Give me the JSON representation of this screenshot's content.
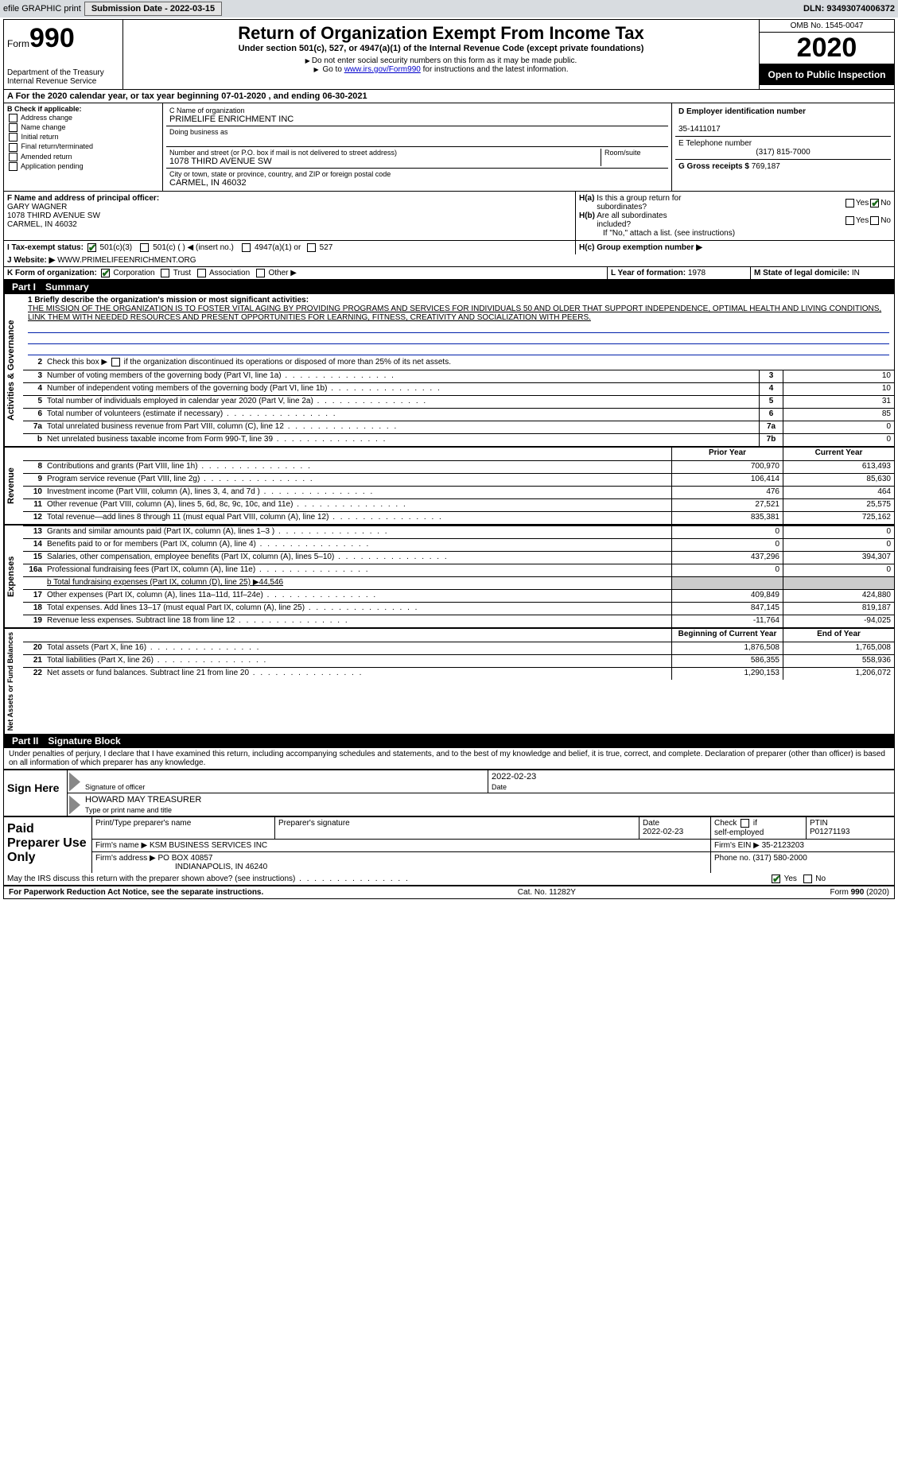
{
  "colors": {
    "header_bg": "#d8dce0",
    "black": "#000000",
    "link": "#0000cc",
    "check_green": "#1a6b1a",
    "underline_blue": "#0020aa",
    "shade": "#cccccc"
  },
  "topbar": {
    "efile": "efile GRAPHIC print",
    "submission_label": "Submission Date - 2022-03-15",
    "dln_label": "DLN: 93493074006372"
  },
  "header": {
    "form_label": "Form",
    "form_number": "990",
    "dept": "Department of the Treasury",
    "irs": "Internal Revenue Service",
    "title": "Return of Organization Exempt From Income Tax",
    "subtitle": "Under section 501(c), 527, or 4947(a)(1) of the Internal Revenue Code (except private foundations)",
    "warn1": "Do not enter social security numbers on this form as it may be made public.",
    "warn2_pre": "Go to ",
    "warn2_link": "www.irs.gov/Form990",
    "warn2_post": " for instructions and the latest information.",
    "omb": "OMB No. 1545-0047",
    "year": "2020",
    "inspect": "Open to Public Inspection"
  },
  "period": {
    "a_label": "A  For the 2020 calendar year, or tax year beginning ",
    "begin": "07-01-2020",
    "mid": " , and ending ",
    "end": "06-30-2021"
  },
  "section_b": {
    "label": "B Check if applicable:",
    "items": [
      "Address change",
      "Name change",
      "Initial return",
      "Final return/terminated",
      "Amended return",
      "Application pending"
    ]
  },
  "section_c": {
    "name_label": "C Name of organization",
    "name": "PRIMELIFE ENRICHMENT INC",
    "dba_label": "Doing business as",
    "addr_label": "Number and street (or P.O. box if mail is not delivered to street address)",
    "room_label": "Room/suite",
    "addr": "1078 THIRD AVENUE SW",
    "city_label": "City or town, state or province, country, and ZIP or foreign postal code",
    "city": "CARMEL, IN  46032"
  },
  "section_d": {
    "ein_label": "D Employer identification number",
    "ein": "35-1411017",
    "phone_label": "E Telephone number",
    "phone": "(317) 815-7000",
    "gross_label": "G Gross receipts $",
    "gross": "769,187"
  },
  "section_f": {
    "label": "F  Name and address of principal officer:",
    "name": "GARY WAGNER",
    "addr1": "1078 THIRD AVENUE SW",
    "addr2": "CARMEL, IN  46032"
  },
  "section_h": {
    "ha_label": "H(a)  Is this a group return for subordinates?",
    "hb_label": "H(b)  Are all subordinates included?",
    "hb_note": "If \"No,\" attach a list. (see instructions)",
    "hc_label": "H(c)  Group exemption number ▶",
    "yes": "Yes",
    "no": "No"
  },
  "section_i": {
    "label": "I  Tax-exempt status:",
    "opt1": "501(c)(3)",
    "opt2": "501(c) (   ) ◀ (insert no.)",
    "opt3": "4947(a)(1) or",
    "opt4": "527"
  },
  "section_j": {
    "label": "J  Website: ▶",
    "value": "WWW.PRIMELIFEENRICHMENT.ORG"
  },
  "section_k": {
    "label": "K Form of organization:",
    "opts": [
      "Corporation",
      "Trust",
      "Association",
      "Other ▶"
    ]
  },
  "section_l": {
    "label": "L Year of formation: ",
    "value": "1978"
  },
  "section_m": {
    "label": "M State of legal domicile: ",
    "value": "IN"
  },
  "part1": {
    "num": "Part I",
    "title": "Summary",
    "line1_label": "1  Briefly describe the organization's mission or most significant activities:",
    "mission": "THE MISSION OF THE ORGANIZATION IS TO FOSTER VITAL AGING BY PROVIDING PROGRAMS AND SERVICES FOR INDIVIDUALS 50 AND OLDER THAT SUPPORT INDEPENDENCE, OPTIMAL HEALTH AND LIVING CONDITIONS, LINK THEM WITH NEEDED RESOURCES AND PRESENT OPPORTUNITIES FOR LEARNING, FITNESS, CREATIVITY AND SOCIALIZATION WITH PEERS.",
    "line2": "Check this box ▶      if the organization discontinued its operations or disposed of more than 25% of its net assets.",
    "vert_labels": {
      "gov": "Activities & Governance",
      "rev": "Revenue",
      "exp": "Expenses",
      "net": "Net Assets or Fund Balances"
    },
    "prior_hdr": "Prior Year",
    "current_hdr": "Current Year",
    "begin_hdr": "Beginning of Current Year",
    "end_hdr": "End of Year",
    "gov_lines": [
      {
        "n": "3",
        "t": "Number of voting members of the governing body (Part VI, line 1a)",
        "box": "3",
        "v": "10"
      },
      {
        "n": "4",
        "t": "Number of independent voting members of the governing body (Part VI, line 1b)",
        "box": "4",
        "v": "10"
      },
      {
        "n": "5",
        "t": "Total number of individuals employed in calendar year 2020 (Part V, line 2a)",
        "box": "5",
        "v": "31"
      },
      {
        "n": "6",
        "t": "Total number of volunteers (estimate if necessary)",
        "box": "6",
        "v": "85"
      },
      {
        "n": "7a",
        "t": "Total unrelated business revenue from Part VIII, column (C), line 12",
        "box": "7a",
        "v": "0"
      },
      {
        "n": "b",
        "t": "Net unrelated business taxable income from Form 990-T, line 39",
        "box": "7b",
        "v": "0"
      }
    ],
    "rev_lines": [
      {
        "n": "8",
        "t": "Contributions and grants (Part VIII, line 1h)",
        "p": "700,970",
        "c": "613,493"
      },
      {
        "n": "9",
        "t": "Program service revenue (Part VIII, line 2g)",
        "p": "106,414",
        "c": "85,630"
      },
      {
        "n": "10",
        "t": "Investment income (Part VIII, column (A), lines 3, 4, and 7d )",
        "p": "476",
        "c": "464"
      },
      {
        "n": "11",
        "t": "Other revenue (Part VIII, column (A), lines 5, 6d, 8c, 9c, 10c, and 11e)",
        "p": "27,521",
        "c": "25,575"
      },
      {
        "n": "12",
        "t": "Total revenue—add lines 8 through 11 (must equal Part VIII, column (A), line 12)",
        "p": "835,381",
        "c": "725,162"
      }
    ],
    "exp_lines": [
      {
        "n": "13",
        "t": "Grants and similar amounts paid (Part IX, column (A), lines 1–3 )",
        "p": "0",
        "c": "0"
      },
      {
        "n": "14",
        "t": "Benefits paid to or for members (Part IX, column (A), line 4)",
        "p": "0",
        "c": "0"
      },
      {
        "n": "15",
        "t": "Salaries, other compensation, employee benefits (Part IX, column (A), lines 5–10)",
        "p": "437,296",
        "c": "394,307"
      },
      {
        "n": "16a",
        "t": "Professional fundraising fees (Part IX, column (A), line 11e)",
        "p": "0",
        "c": "0"
      }
    ],
    "line16b": "b  Total fundraising expenses (Part IX, column (D), line 25) ▶44,546",
    "exp_lines2": [
      {
        "n": "17",
        "t": "Other expenses (Part IX, column (A), lines 11a–11d, 11f–24e)",
        "p": "409,849",
        "c": "424,880"
      },
      {
        "n": "18",
        "t": "Total expenses. Add lines 13–17 (must equal Part IX, column (A), line 25)",
        "p": "847,145",
        "c": "819,187"
      },
      {
        "n": "19",
        "t": "Revenue less expenses. Subtract line 18 from line 12",
        "p": "-11,764",
        "c": "-94,025"
      }
    ],
    "net_lines": [
      {
        "n": "20",
        "t": "Total assets (Part X, line 16)",
        "p": "1,876,508",
        "c": "1,765,008"
      },
      {
        "n": "21",
        "t": "Total liabilities (Part X, line 26)",
        "p": "586,355",
        "c": "558,936"
      },
      {
        "n": "22",
        "t": "Net assets or fund balances. Subtract line 21 from line 20",
        "p": "1,290,153",
        "c": "1,206,072"
      }
    ]
  },
  "part2": {
    "num": "Part II",
    "title": "Signature Block",
    "penalty": "Under penalties of perjury, I declare that I have examined this return, including accompanying schedules and statements, and to the best of my knowledge and belief, it is true, correct, and complete. Declaration of preparer (other than officer) is based on all information of which preparer has any knowledge.",
    "sign_here": "Sign Here",
    "sig_officer": "Signature of officer",
    "sig_date": "Date",
    "sig_date_val": "2022-02-23",
    "name_title_val": "HOWARD MAY TREASURER",
    "name_title": "Type or print name and title",
    "paid_label": "Paid Preparer Use Only",
    "prep_name_label": "Print/Type preparer's name",
    "prep_sig_label": "Preparer's signature",
    "prep_date_label": "Date",
    "prep_date": "2022-02-23",
    "self_emp": "Check       if self-employed",
    "ptin_label": "PTIN",
    "ptin": "P01271193",
    "firm_name_label": "Firm's name    ▶",
    "firm_name": "KSM BUSINESS SERVICES INC",
    "firm_ein_label": "Firm's EIN ▶",
    "firm_ein": "35-2123203",
    "firm_addr_label": "Firm's address ▶",
    "firm_addr1": "PO BOX 40857",
    "firm_addr2": "INDIANAPOLIS, IN  46240",
    "firm_phone_label": "Phone no.",
    "firm_phone": "(317) 580-2000",
    "discuss": "May the IRS discuss this return with the preparer shown above? (see instructions)"
  },
  "footer": {
    "left": "For Paperwork Reduction Act Notice, see the separate instructions.",
    "mid": "Cat. No. 11282Y",
    "right_pre": "Form ",
    "right_bold": "990",
    "right_post": " (2020)"
  }
}
